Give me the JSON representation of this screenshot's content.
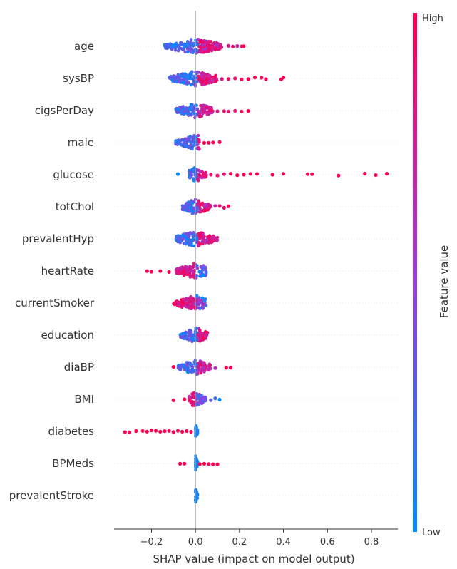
{
  "chart_data": {
    "type": "scatter",
    "subtype": "shap-beeswarm",
    "xlabel": "SHAP value (impact on model output)",
    "xticks": [
      -0.2,
      0.0,
      0.2,
      0.4,
      0.6,
      0.8
    ],
    "xlim": [
      -0.37,
      0.92
    ],
    "colorbar": {
      "label": "Feature value",
      "high_label": "High",
      "low_label": "Low",
      "high_color": "#ff0051",
      "low_color": "#008bfb"
    },
    "features": [
      {
        "name": "age",
        "core": [
          -0.14,
          0.12
        ],
        "tail": [
          [
            0.15,
            0.8
          ],
          [
            0.17,
            0.9
          ],
          [
            0.19,
            0.7
          ],
          [
            0.21,
            0.9
          ],
          [
            0.22,
            1.0
          ]
        ]
      },
      {
        "name": "sysBP",
        "core": [
          -0.12,
          0.1
        ],
        "tail": [
          [
            0.12,
            0.8
          ],
          [
            0.15,
            0.9
          ],
          [
            0.18,
            0.9
          ],
          [
            0.21,
            1.0
          ],
          [
            0.24,
            1.0
          ],
          [
            0.27,
            1.0
          ],
          [
            0.3,
            1.0
          ],
          [
            0.32,
            1.0
          ],
          [
            0.39,
            1.0
          ],
          [
            0.4,
            1.0
          ]
        ]
      },
      {
        "name": "cigsPerDay",
        "core": [
          -0.09,
          0.08
        ],
        "tail": [
          [
            0.1,
            0.8
          ],
          [
            0.13,
            0.9
          ],
          [
            0.15,
            0.9
          ],
          [
            0.18,
            0.9
          ],
          [
            0.21,
            1.0
          ],
          [
            0.24,
            1.0
          ]
        ]
      },
      {
        "name": "male",
        "core": [
          -0.09,
          0.02
        ],
        "tail": [
          [
            0.04,
            1.0
          ],
          [
            0.06,
            1.0
          ],
          [
            0.08,
            1.0
          ],
          [
            0.11,
            1.0
          ]
        ]
      },
      {
        "name": "glucose",
        "core": [
          -0.03,
          0.05
        ],
        "tail": [
          [
            -0.08,
            0.0
          ],
          [
            0.07,
            0.9
          ],
          [
            0.1,
            0.9
          ],
          [
            0.13,
            0.9
          ],
          [
            0.16,
            1.0
          ],
          [
            0.19,
            1.0
          ],
          [
            0.22,
            1.0
          ],
          [
            0.25,
            1.0
          ],
          [
            0.28,
            1.0
          ],
          [
            0.35,
            1.0
          ],
          [
            0.4,
            1.0
          ],
          [
            0.51,
            1.0
          ],
          [
            0.53,
            1.0
          ],
          [
            0.65,
            1.0
          ],
          [
            0.77,
            1.0
          ],
          [
            0.82,
            1.0
          ],
          [
            0.87,
            1.0
          ]
        ]
      },
      {
        "name": "totChol",
        "core": [
          -0.06,
          0.07
        ],
        "tail": [
          [
            0.09,
            0.7
          ],
          [
            0.11,
            0.9
          ],
          [
            0.13,
            0.9
          ],
          [
            0.15,
            1.0
          ]
        ]
      },
      {
        "name": "prevalentHyp",
        "core": [
          -0.09,
          0.1
        ],
        "tail": []
      },
      {
        "name": "heartRate",
        "core": [
          -0.09,
          0.05
        ],
        "tail": [
          [
            -0.22,
            1.0
          ],
          [
            -0.2,
            1.0
          ],
          [
            -0.16,
            1.0
          ],
          [
            -0.12,
            1.0
          ]
        ]
      },
      {
        "name": "currentSmoker",
        "core": [
          -0.1,
          0.05
        ],
        "tail": []
      },
      {
        "name": "education",
        "core": [
          -0.07,
          0.06
        ],
        "tail": []
      },
      {
        "name": "diaBP",
        "core": [
          -0.08,
          0.07
        ],
        "tail": [
          [
            -0.1,
            1.0
          ],
          [
            0.09,
            0.6
          ],
          [
            0.14,
            1.0
          ],
          [
            0.16,
            1.0
          ]
        ]
      },
      {
        "name": "BMI",
        "core": [
          -0.03,
          0.05
        ],
        "tail": [
          [
            -0.1,
            1.0
          ],
          [
            -0.05,
            1.0
          ],
          [
            0.07,
            0.3
          ],
          [
            0.09,
            0.2
          ],
          [
            0.11,
            0.0
          ]
        ]
      },
      {
        "name": "diabetes",
        "core": [
          0.0,
          0.01
        ],
        "tail": [
          [
            -0.32,
            1.0
          ],
          [
            -0.3,
            1.0
          ],
          [
            -0.27,
            1.0
          ],
          [
            -0.24,
            1.0
          ],
          [
            -0.22,
            1.0
          ],
          [
            -0.2,
            1.0
          ],
          [
            -0.18,
            1.0
          ],
          [
            -0.16,
            1.0
          ],
          [
            -0.14,
            1.0
          ],
          [
            -0.12,
            1.0
          ],
          [
            -0.1,
            1.0
          ],
          [
            -0.08,
            1.0
          ],
          [
            -0.06,
            1.0
          ],
          [
            -0.04,
            1.0
          ],
          [
            -0.02,
            1.0
          ]
        ]
      },
      {
        "name": "BPMeds",
        "core": [
          0.0,
          0.01
        ],
        "tail": [
          [
            -0.07,
            1.0
          ],
          [
            -0.05,
            1.0
          ],
          [
            0.02,
            1.0
          ],
          [
            0.04,
            1.0
          ],
          [
            0.06,
            1.0
          ],
          [
            0.08,
            1.0
          ],
          [
            0.1,
            1.0
          ]
        ]
      },
      {
        "name": "prevalentStroke",
        "core": [
          0.0,
          0.01
        ],
        "tail": []
      }
    ]
  }
}
